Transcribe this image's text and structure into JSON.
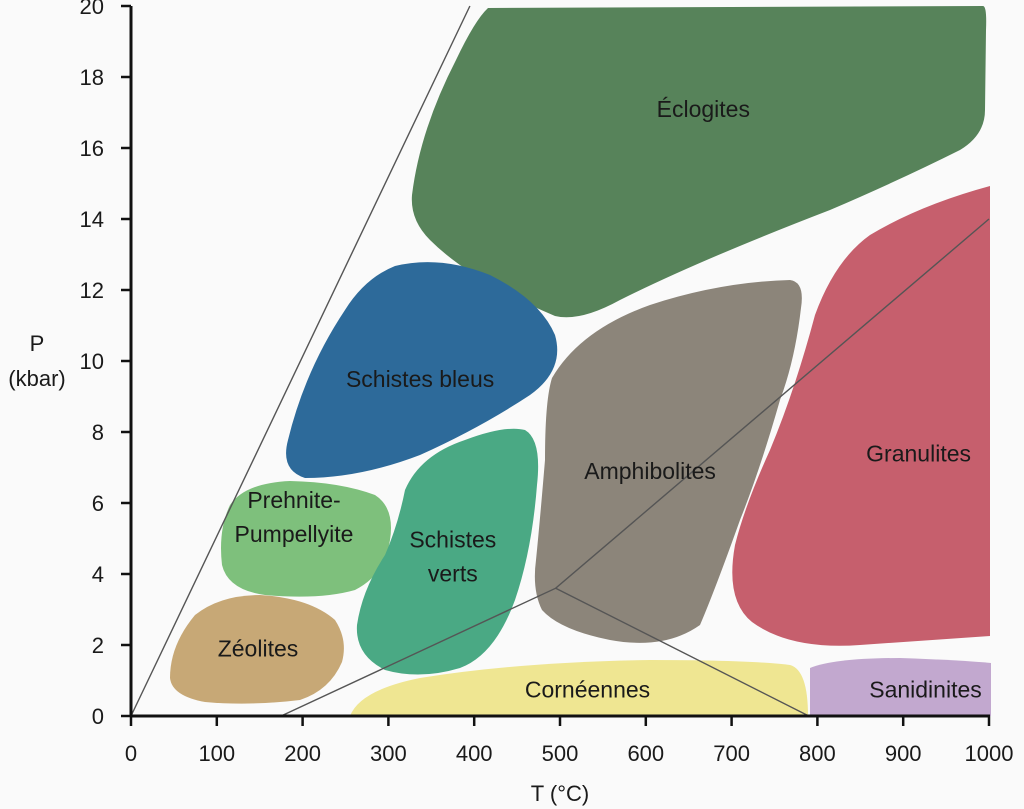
{
  "chart_data": {
    "type": "facies-diagram",
    "title": "",
    "xlabel": "T (°C)",
    "ylabel": "P",
    "ylabel_unit": "(kbar)",
    "xlim": [
      0,
      1000
    ],
    "ylim": [
      0,
      20
    ],
    "xticks": [
      0,
      100,
      200,
      300,
      400,
      500,
      600,
      700,
      800,
      900,
      1000
    ],
    "yticks": [
      0,
      2,
      4,
      6,
      8,
      10,
      12,
      14,
      16,
      18,
      20
    ],
    "facies": [
      {
        "name": "Éclogites",
        "lines": [
          "Éclogites"
        ],
        "color": "#57835a",
        "label_at": [
          667,
          17.1
        ]
      },
      {
        "name": "Schistes bleus",
        "lines": [
          "Schistes bleus"
        ],
        "color": "#2d6a9a",
        "label_at": [
          337,
          9.5
        ]
      },
      {
        "name": "Amphibolites",
        "lines": [
          "Amphibolites"
        ],
        "color": "#8c857a",
        "label_at": [
          605,
          6.9
        ]
      },
      {
        "name": "Granulites",
        "lines": [
          "Granulites"
        ],
        "color": "#c65f6d",
        "label_at": [
          918,
          7.4
        ]
      },
      {
        "name": "Prehnite-Pumpellyite",
        "lines": [
          "Prehnite-",
          "Pumpellyite"
        ],
        "color": "#7ec07c",
        "label_at": [
          190,
          5.6
        ]
      },
      {
        "name": "Schistes verts",
        "lines": [
          "Schistes",
          "verts"
        ],
        "color": "#4aa984",
        "label_at": [
          375,
          4.5
        ]
      },
      {
        "name": "Zéolites",
        "lines": [
          "Zéolites"
        ],
        "color": "#c7a876",
        "label_at": [
          148,
          1.9
        ]
      },
      {
        "name": "Cornéennes",
        "lines": [
          "Cornéennes"
        ],
        "color": "#efe692",
        "label_at": [
          532,
          0.75
        ]
      },
      {
        "name": "Sanidinites",
        "lines": [
          "Sanidinites"
        ],
        "color": "#c2a8cf",
        "label_at": [
          926,
          0.75
        ]
      }
    ],
    "reference_lines": [
      {
        "name": "steep-geotherm",
        "points": [
          [
            0,
            0
          ],
          [
            395,
            20
          ]
        ]
      },
      {
        "name": "contact-geotherm",
        "points": [
          [
            175,
            0
          ],
          [
            495,
            3.6
          ],
          [
            1000,
            14
          ]
        ]
      },
      {
        "name": "contact-boundary",
        "points": [
          [
            495,
            3.6
          ],
          [
            790,
            0
          ]
        ]
      }
    ],
    "colors": {
      "axis": "#111111",
      "reference_line": "#555555",
      "background": "#fafafa"
    }
  }
}
